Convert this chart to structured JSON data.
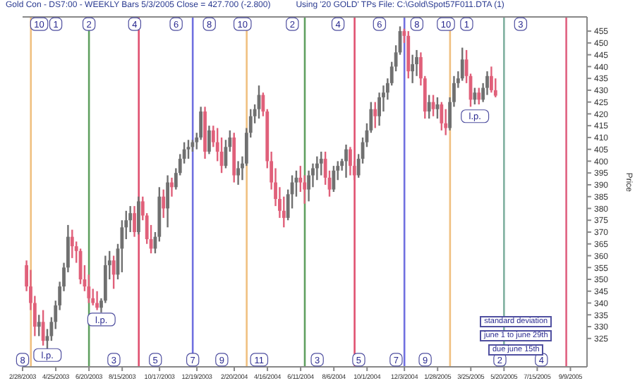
{
  "chart_data": {
    "type": "candlestick",
    "title": "Gold Con - DS7:00 - WEEKLY Bars  5/3/2005 Close = 427.700 (-2.800)",
    "subtitle": "Using '20 GOLD' TPs   File: C:\\Gold\\Spot57F011.DTA (1)",
    "ylabel": "Price",
    "x": [
      "2003-03-07",
      "2003-03-14",
      "2003-03-21",
      "2003-03-28",
      "2003-04-04",
      "2003-04-11",
      "2003-04-18",
      "2003-04-25",
      "2003-05-02",
      "2003-05-09",
      "2003-05-16",
      "2003-05-23",
      "2003-05-30",
      "2003-06-06",
      "2003-06-13",
      "2003-06-20",
      "2003-06-27",
      "2003-07-04",
      "2003-07-11",
      "2003-07-18",
      "2003-07-25",
      "2003-08-01",
      "2003-08-08",
      "2003-08-15",
      "2003-08-22",
      "2003-08-29",
      "2003-09-05",
      "2003-09-12",
      "2003-09-19",
      "2003-09-26",
      "2003-10-03",
      "2003-10-10",
      "2003-10-17",
      "2003-10-24",
      "2003-10-31",
      "2003-11-07",
      "2003-11-14",
      "2003-11-21",
      "2003-11-28",
      "2003-12-05",
      "2003-12-12",
      "2003-12-19",
      "2003-12-26",
      "2004-01-02",
      "2004-01-09",
      "2004-01-16",
      "2004-01-23",
      "2004-01-30",
      "2004-02-06",
      "2004-02-13",
      "2004-02-20",
      "2004-02-27",
      "2004-03-05",
      "2004-03-12",
      "2004-03-19",
      "2004-03-26",
      "2004-04-02",
      "2004-04-09",
      "2004-04-16",
      "2004-04-23",
      "2004-04-30",
      "2004-05-07",
      "2004-05-14",
      "2004-05-21",
      "2004-05-28",
      "2004-06-04",
      "2004-06-11",
      "2004-06-18",
      "2004-06-25",
      "2004-07-02",
      "2004-07-09",
      "2004-07-16",
      "2004-07-23",
      "2004-07-30",
      "2004-08-06",
      "2004-08-13",
      "2004-08-20",
      "2004-08-27",
      "2004-09-03",
      "2004-09-10",
      "2004-09-17",
      "2004-09-24",
      "2004-10-01",
      "2004-10-08",
      "2004-10-15",
      "2004-10-22",
      "2004-10-29",
      "2004-11-05",
      "2004-11-12",
      "2004-11-19",
      "2004-11-26",
      "2004-12-03",
      "2004-12-10",
      "2004-12-17",
      "2004-12-24",
      "2004-12-31",
      "2005-01-07",
      "2005-01-14",
      "2005-01-21",
      "2005-01-28",
      "2005-02-04",
      "2005-02-11",
      "2005-02-18",
      "2005-02-25",
      "2005-03-04",
      "2005-03-11",
      "2005-03-18",
      "2005-03-25",
      "2005-04-01",
      "2005-04-08",
      "2005-04-15",
      "2005-04-22",
      "2005-04-29",
      "2005-05-06"
    ],
    "ohlc": [
      [
        356,
        358,
        345,
        347
      ],
      [
        347,
        354,
        337,
        340
      ],
      [
        340,
        343,
        326,
        330
      ],
      [
        330,
        335,
        326,
        332
      ],
      [
        332,
        337,
        322,
        324
      ],
      [
        324,
        329,
        320,
        326
      ],
      [
        326,
        334,
        324,
        332
      ],
      [
        332,
        341,
        329,
        339
      ],
      [
        339,
        349,
        337,
        347
      ],
      [
        347,
        357,
        345,
        355
      ],
      [
        355,
        373,
        353,
        368
      ],
      [
        368,
        371,
        359,
        364
      ],
      [
        364,
        366,
        357,
        362
      ],
      [
        362,
        363,
        348,
        350
      ],
      [
        350,
        356,
        345,
        347
      ],
      [
        347,
        352,
        340,
        342
      ],
      [
        342,
        346,
        339,
        340
      ],
      [
        340,
        345,
        337,
        338
      ],
      [
        338,
        342,
        336,
        341
      ],
      [
        341,
        360,
        340,
        356
      ],
      [
        356,
        362,
        350,
        358
      ],
      [
        358,
        360,
        346,
        352
      ],
      [
        352,
        365,
        350,
        363
      ],
      [
        363,
        375,
        353,
        372
      ],
      [
        372,
        379,
        367,
        375
      ],
      [
        375,
        381,
        370,
        378
      ],
      [
        378,
        381,
        368,
        370
      ],
      [
        370,
        385,
        369,
        383
      ],
      [
        383,
        385,
        375,
        377
      ],
      [
        377,
        378,
        365,
        367
      ],
      [
        367,
        373,
        361,
        363
      ],
      [
        363,
        370,
        361,
        368
      ],
      [
        368,
        389,
        366,
        385
      ],
      [
        385,
        388,
        376,
        380
      ],
      [
        380,
        394,
        372,
        391
      ],
      [
        391,
        393,
        385,
        389
      ],
      [
        389,
        397,
        388,
        395
      ],
      [
        395,
        403,
        394,
        401
      ],
      [
        401,
        408,
        399,
        405
      ],
      [
        405,
        409,
        401,
        406
      ],
      [
        406,
        409,
        404,
        408
      ],
      [
        408,
        412,
        405,
        410
      ],
      [
        410,
        423,
        409,
        421
      ],
      [
        421,
        423,
        401,
        404
      ],
      [
        404,
        415,
        403,
        413
      ],
      [
        413,
        415,
        406,
        408
      ],
      [
        408,
        414,
        400,
        404
      ],
      [
        404,
        410,
        395,
        398
      ],
      [
        398,
        409,
        397,
        406
      ],
      [
        406,
        413,
        404,
        410
      ],
      [
        410,
        412,
        391,
        394
      ],
      [
        394,
        400,
        390,
        397
      ],
      [
        397,
        402,
        392,
        399
      ],
      [
        399,
        414,
        398,
        412
      ],
      [
        412,
        422,
        410,
        419
      ],
      [
        419,
        424,
        416,
        422
      ],
      [
        422,
        432,
        418,
        428
      ],
      [
        428,
        429,
        419,
        421
      ],
      [
        421,
        422,
        397,
        400
      ],
      [
        400,
        404,
        388,
        391
      ],
      [
        391,
        397,
        381,
        384
      ],
      [
        384,
        389,
        376,
        379
      ],
      [
        379,
        385,
        372,
        376
      ],
      [
        376,
        388,
        375,
        386
      ],
      [
        386,
        394,
        380,
        391
      ],
      [
        391,
        396,
        385,
        393
      ],
      [
        393,
        398,
        387,
        391
      ],
      [
        391,
        394,
        382,
        388
      ],
      [
        388,
        396,
        383,
        394
      ],
      [
        394,
        399,
        389,
        397
      ],
      [
        397,
        402,
        392,
        399
      ],
      [
        399,
        404,
        394,
        401
      ],
      [
        401,
        404,
        390,
        393
      ],
      [
        393,
        396,
        385,
        388
      ],
      [
        388,
        398,
        387,
        396
      ],
      [
        396,
        400,
        392,
        398
      ],
      [
        398,
        401,
        396,
        400
      ],
      [
        400,
        407,
        393,
        405
      ],
      [
        405,
        406,
        394,
        398
      ],
      [
        398,
        400,
        392,
        394
      ],
      [
        394,
        403,
        393,
        401
      ],
      [
        401,
        410,
        399,
        408
      ],
      [
        408,
        416,
        406,
        413
      ],
      [
        413,
        425,
        412,
        422
      ],
      [
        422,
        425,
        414,
        419
      ],
      [
        419,
        429,
        415,
        427
      ],
      [
        427,
        432,
        421,
        429
      ],
      [
        429,
        435,
        426,
        433
      ],
      [
        433,
        442,
        432,
        440
      ],
      [
        440,
        449,
        438,
        446
      ],
      [
        446,
        457,
        445,
        455
      ],
      [
        455,
        456,
        450,
        453
      ],
      [
        453,
        455,
        435,
        438
      ],
      [
        438,
        445,
        433,
        441
      ],
      [
        441,
        447,
        436,
        444
      ],
      [
        444,
        446,
        432,
        435
      ],
      [
        435,
        436,
        418,
        421
      ],
      [
        421,
        428,
        418,
        425
      ],
      [
        425,
        428,
        419,
        422
      ],
      [
        422,
        427,
        418,
        424
      ],
      [
        424,
        425,
        413,
        416
      ],
      [
        416,
        422,
        411,
        414
      ],
      [
        414,
        427,
        413,
        425
      ],
      [
        425,
        436,
        423,
        433
      ],
      [
        433,
        438,
        431,
        435
      ],
      [
        435,
        448,
        434,
        443
      ],
      [
        443,
        447,
        433,
        436
      ],
      [
        436,
        437,
        423,
        426
      ],
      [
        426,
        431,
        424,
        429
      ],
      [
        429,
        431,
        424,
        426
      ],
      [
        426,
        433,
        425,
        431
      ],
      [
        431,
        438,
        428,
        436
      ],
      [
        436,
        440,
        429,
        430
      ],
      [
        430,
        435,
        427,
        427.7
      ]
    ],
    "colors": [
      "#e0607a",
      "#e0607a",
      "#e0607a",
      "#707070",
      "#e0607a",
      "#707070",
      "#707070",
      "#707070",
      "#707070",
      "#707070",
      "#707070",
      "#e0607a",
      "#e0607a",
      "#e0607a",
      "#e0607a",
      "#e0607a",
      "#e0607a",
      "#e0607a",
      "#707070",
      "#707070",
      "#707070",
      "#e0607a",
      "#707070",
      "#707070",
      "#707070",
      "#707070",
      "#e0607a",
      "#707070",
      "#e0607a",
      "#e0607a",
      "#e0607a",
      "#707070",
      "#707070",
      "#e0607a",
      "#707070",
      "#e0607a",
      "#707070",
      "#707070",
      "#707070",
      "#707070",
      "#707070",
      "#707070",
      "#707070",
      "#e0607a",
      "#707070",
      "#e0607a",
      "#e0607a",
      "#e0607a",
      "#707070",
      "#707070",
      "#e0607a",
      "#707070",
      "#707070",
      "#707070",
      "#707070",
      "#707070",
      "#707070",
      "#e0607a",
      "#e0607a",
      "#e0607a",
      "#e0607a",
      "#e0607a",
      "#e0607a",
      "#707070",
      "#707070",
      "#707070",
      "#e0607a",
      "#e0607a",
      "#707070",
      "#707070",
      "#707070",
      "#707070",
      "#e0607a",
      "#e0607a",
      "#707070",
      "#707070",
      "#707070",
      "#707070",
      "#e0607a",
      "#e0607a",
      "#707070",
      "#707070",
      "#707070",
      "#707070",
      "#e0607a",
      "#707070",
      "#707070",
      "#707070",
      "#707070",
      "#707070",
      "#707070",
      "#e0607a",
      "#e0607a",
      "#707070",
      "#707070",
      "#e0607a",
      "#e0607a",
      "#707070",
      "#e0607a",
      "#707070",
      "#e0607a",
      "#e0607a",
      "#707070",
      "#707070",
      "#707070",
      "#707070",
      "#e0607a",
      "#e0607a",
      "#707070",
      "#e0607a",
      "#707070",
      "#707070",
      "#e0607a",
      "#e0607a"
    ],
    "xlim": [
      "2003-02-28",
      "2005-10-07"
    ],
    "xticks": [
      {
        "value": "2003-02-28",
        "label": "2/28/2003"
      },
      {
        "value": "2003-04-25",
        "label": "4/25/2003"
      },
      {
        "value": "2003-06-20",
        "label": "6/20/2003"
      },
      {
        "value": "2003-08-15",
        "label": "8/15/2003"
      },
      {
        "value": "2003-10-17",
        "label": "10/17/2003"
      },
      {
        "value": "2003-12-19",
        "label": "12/19/2003"
      },
      {
        "value": "2004-02-20",
        "label": "2/20/2004"
      },
      {
        "value": "2004-04-16",
        "label": "4/16/2004"
      },
      {
        "value": "2004-06-11",
        "label": "6/11/2004"
      },
      {
        "value": "2004-08-06",
        "label": "8/6/2004"
      },
      {
        "value": "2004-10-01",
        "label": "10/1/2004"
      },
      {
        "value": "2004-12-03",
        "label": "12/3/2004"
      },
      {
        "value": "2005-01-28",
        "label": "1/28/2005"
      },
      {
        "value": "2005-03-25",
        "label": "3/25/2005"
      },
      {
        "value": "2005-05-20",
        "label": "5/20/2005"
      },
      {
        "value": "2005-07-15",
        "label": "7/15/2005"
      },
      {
        "value": "2005-09-09",
        "label": "9/9/2005"
      }
    ],
    "ylim": [
      313,
      461
    ],
    "yticks": [
      325,
      330,
      335,
      340,
      345,
      350,
      355,
      360,
      365,
      370,
      375,
      380,
      385,
      390,
      395,
      400,
      405,
      410,
      415,
      420,
      425,
      430,
      435,
      440,
      445,
      450,
      455
    ],
    "ref_lines": [
      {
        "axis": "x",
        "value": "2003-03-14",
        "color": "#f0c080"
      },
      {
        "axis": "x",
        "value": "2003-06-20",
        "color": "#60a060"
      },
      {
        "axis": "x",
        "value": "2003-09-12",
        "color": "#e05070"
      },
      {
        "axis": "x",
        "value": "2003-12-12",
        "color": "#7070e0"
      },
      {
        "axis": "x",
        "value": "2004-03-12",
        "color": "#f0c080"
      },
      {
        "axis": "x",
        "value": "2004-06-18",
        "color": "#60a060"
      },
      {
        "axis": "x",
        "value": "2004-09-10",
        "color": "#e05070"
      },
      {
        "axis": "x",
        "value": "2004-12-03",
        "color": "#7070e0"
      },
      {
        "axis": "x",
        "value": "2005-02-18",
        "color": "#f0c080"
      },
      {
        "axis": "x",
        "value": "2005-05-20",
        "color": "#80b0a0"
      },
      {
        "axis": "x",
        "value": "2005-09-02",
        "color": "#e06080"
      }
    ],
    "annotations": [
      {
        "text": "10",
        "x": "2003-03-28",
        "y": 458
      },
      {
        "text": "1",
        "x": "2003-04-25",
        "y": 458
      },
      {
        "text": "2",
        "x": "2003-06-20",
        "y": 458
      },
      {
        "text": "4",
        "x": "2003-09-05",
        "y": 458
      },
      {
        "text": "6",
        "x": "2003-11-14",
        "y": 458
      },
      {
        "text": "8",
        "x": "2004-01-09",
        "y": 458
      },
      {
        "text": "10",
        "x": "2004-03-05",
        "y": 458
      },
      {
        "text": "2",
        "x": "2004-05-28",
        "y": 458
      },
      {
        "text": "4",
        "x": "2004-08-13",
        "y": 458
      },
      {
        "text": "6",
        "x": "2004-10-22",
        "y": 458
      },
      {
        "text": "8",
        "x": "2004-12-24",
        "y": 458
      },
      {
        "text": "10",
        "x": "2005-02-11",
        "y": 458
      },
      {
        "text": "1",
        "x": "2005-03-18",
        "y": 458
      },
      {
        "text": "3",
        "x": "2005-06-17",
        "y": 458
      },
      {
        "text": "8",
        "x": "2003-02-28",
        "y": 316
      },
      {
        "text": "3",
        "x": "2003-08-01",
        "y": 316
      },
      {
        "text": "5",
        "x": "2003-10-10",
        "y": 316
      },
      {
        "text": "7",
        "x": "2003-12-12",
        "y": 316
      },
      {
        "text": "9",
        "x": "2004-01-30",
        "y": 316
      },
      {
        "text": "11",
        "x": "2004-04-02",
        "y": 316
      },
      {
        "text": "3",
        "x": "2004-07-09",
        "y": 316
      },
      {
        "text": "5",
        "x": "2004-09-17",
        "y": 316
      },
      {
        "text": "7",
        "x": "2004-11-19",
        "y": 316
      },
      {
        "text": "9",
        "x": "2005-01-07",
        "y": 316
      },
      {
        "text": "2",
        "x": "2005-05-13",
        "y": 316
      },
      {
        "text": "4",
        "x": "2005-07-22",
        "y": 316
      },
      {
        "text": "l.p.",
        "x": "2003-04-11",
        "y": 318
      },
      {
        "text": "l.p.",
        "x": "2003-07-11",
        "y": 333
      },
      {
        "text": "l.p.",
        "x": "2005-04-01",
        "y": 419
      },
      "standard deviation",
      "june 1 to june 29th",
      "due june 15th"
    ]
  }
}
